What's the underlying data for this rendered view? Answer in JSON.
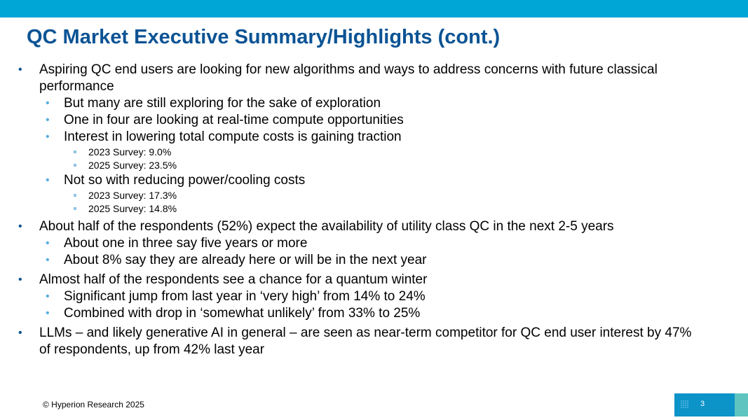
{
  "header": {
    "title": "QC Market Executive Summary/Highlights (cont.)"
  },
  "bullets": [
    {
      "text": "Aspiring QC end users are looking for new algorithms and ways to address concerns with future classical performance",
      "children": [
        {
          "text": "But many are still exploring for the sake of exploration"
        },
        {
          "text": "One in four are looking at real-time compute opportunities"
        },
        {
          "text": "Interest in lowering total compute costs is gaining traction",
          "children": [
            {
              "text": "2023 Survey: 9.0%"
            },
            {
              "text": "2025 Survey: 23.5%"
            }
          ]
        },
        {
          "text": "Not so with reducing power/cooling costs",
          "children": [
            {
              "text": "2023 Survey: 17.3%"
            },
            {
              "text": "2025 Survey: 14.8%"
            }
          ]
        }
      ]
    },
    {
      "text": "About half of the respondents (52%) expect the availability of utility class QC in the next 2-5 years",
      "children": [
        {
          "text": "About one in three say five years or more"
        },
        {
          "text": "About 8% say they are already here or will be in the next year"
        }
      ]
    },
    {
      "text": "Almost half of the respondents see a chance for a quantum winter",
      "children": [
        {
          "text": "Significant jump from last year in ‘very high’ from 14% to 24%"
        },
        {
          "text": "Combined with drop in ‘somewhat unlikely’ from 33% to 25%"
        }
      ]
    },
    {
      "text": "LLMs – and likely generative AI in general – are seen as near-term competitor for QC end user interest by 47% of respondents, up from 42% last year"
    }
  ],
  "footer": {
    "copyright": "© Hyperion Research 2025",
    "page_number": "3"
  },
  "colors": {
    "top_bar": "#00a6d6",
    "title": "#0b5394",
    "l1_bullet": "#0b5394",
    "l2_bullet": "#5aaee0",
    "l3_bullet": "#8fc3e6",
    "page_box": "#0c93c8",
    "page_box_accent": "#5fc4c0"
  }
}
